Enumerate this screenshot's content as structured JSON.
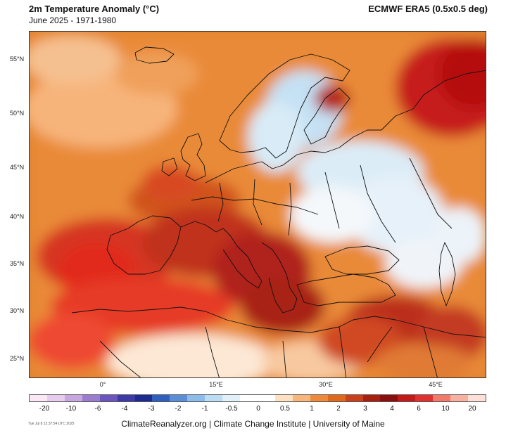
{
  "header": {
    "title": "2m Temperature Anomaly (°C)",
    "subtitle": "June 2025 - 1971-1980",
    "source": "ECMWF ERA5 (0.5x0.5 deg)"
  },
  "map": {
    "region": "Europe",
    "lat_labels": [
      "55°N",
      "50°N",
      "45°N",
      "40°N",
      "35°N",
      "30°N",
      "25°N"
    ],
    "lon_labels": [
      "0°",
      "15°E",
      "30°E",
      "45°E"
    ]
  },
  "legend": {
    "ticks": [
      "-20",
      "-10",
      "-6",
      "-4",
      "-3",
      "-2",
      "-1",
      "-0.5",
      "0",
      "0.5",
      "1",
      "2",
      "3",
      "4",
      "6",
      "10",
      "20"
    ],
    "colors": [
      "#fbe8f6",
      "#e6ccee",
      "#c7a7e0",
      "#9b7dd0",
      "#6d55bf",
      "#3d3aa8",
      "#1d2a8f",
      "#2f5fbf",
      "#5a8fd8",
      "#8cbce9",
      "#bcdcf3",
      "#e2f0f9",
      "#ffffff",
      "#ffffff",
      "#fde1c2",
      "#f7b77a",
      "#ee8a3a",
      "#e06a1c",
      "#c9401a",
      "#a82010",
      "#8a1010",
      "#c41a1a",
      "#e03030",
      "#f27a6a",
      "#f8b0a0",
      "#fde0d8"
    ]
  },
  "footer": {
    "credit": "ClimateReanalyzer.org | Climate Change Institute | University of Maine",
    "timestamp": "Tue Jul 8 12:37:54 UTC 2025"
  }
}
